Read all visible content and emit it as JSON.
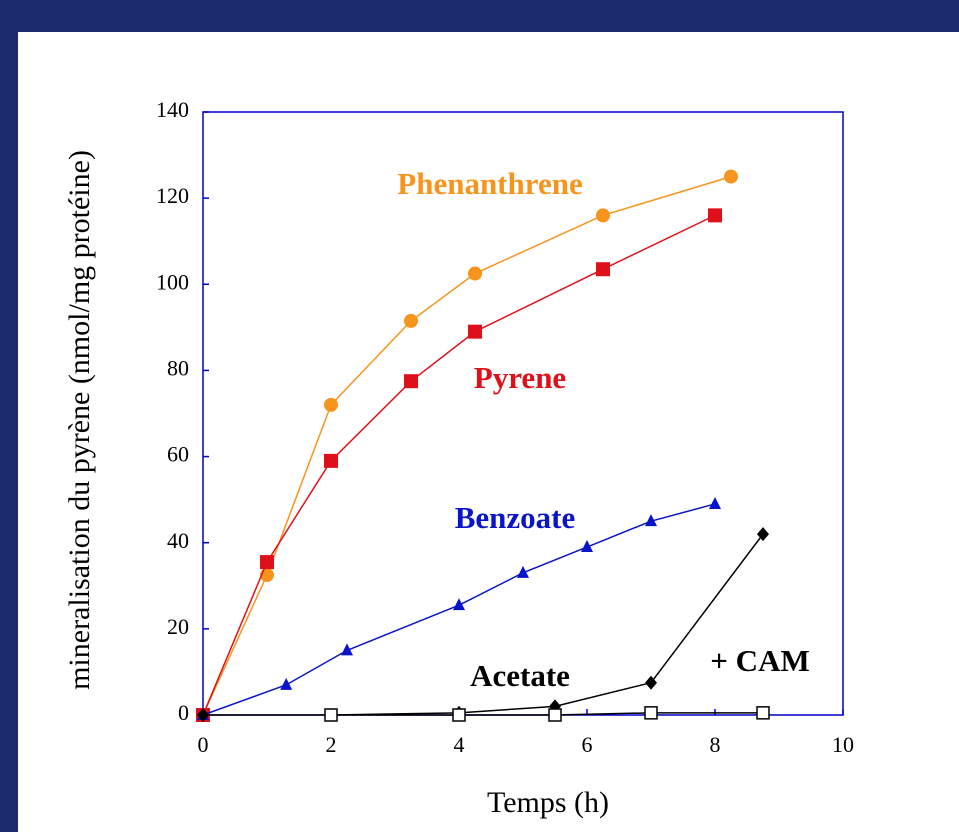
{
  "chart_data": {
    "type": "line",
    "xlabel": "Temps (h)",
    "ylabel": "mineralisation du pyrène (nmol/mg protéine)",
    "xlim": [
      0,
      10
    ],
    "xticks": [
      0,
      2,
      4,
      6,
      8,
      10
    ],
    "ylim": [
      0,
      140
    ],
    "yticks": [
      0,
      20,
      40,
      60,
      80,
      100,
      120,
      140
    ],
    "series": [
      {
        "name": "Phenanthrene",
        "color": "#f7941d",
        "marker": "circle",
        "x": [
          0,
          1,
          2,
          3.25,
          4.25,
          6.25,
          8.25
        ],
        "values": [
          0,
          32.5,
          72,
          91.5,
          102.5,
          116,
          125
        ]
      },
      {
        "name": "Pyrene",
        "color": "#e0101a",
        "marker": "square",
        "x": [
          0,
          1,
          2,
          3.25,
          4.25,
          6.25,
          8
        ],
        "values": [
          0,
          35.5,
          59,
          77.5,
          89,
          103.5,
          116
        ]
      },
      {
        "name": "Benzoate",
        "color": "#0a14c8",
        "marker": "triangle",
        "x": [
          0,
          1.3,
          2.25,
          4,
          5,
          6,
          7,
          8
        ],
        "values": [
          0,
          7,
          15,
          25.5,
          33,
          39,
          45,
          49
        ]
      },
      {
        "name": "Acetate",
        "color": "#000000",
        "marker": "diamond",
        "x": [
          0,
          2,
          4,
          5.5,
          7,
          8.75
        ],
        "values": [
          0,
          0,
          0.5,
          2,
          7.5,
          42
        ]
      },
      {
        "name": "+ CAM",
        "color": "#000000",
        "marker": "open-square",
        "x": [
          2,
          4,
          5.5,
          7,
          8.75
        ],
        "values": [
          0,
          0,
          0,
          0.5,
          0.5
        ]
      }
    ]
  }
}
